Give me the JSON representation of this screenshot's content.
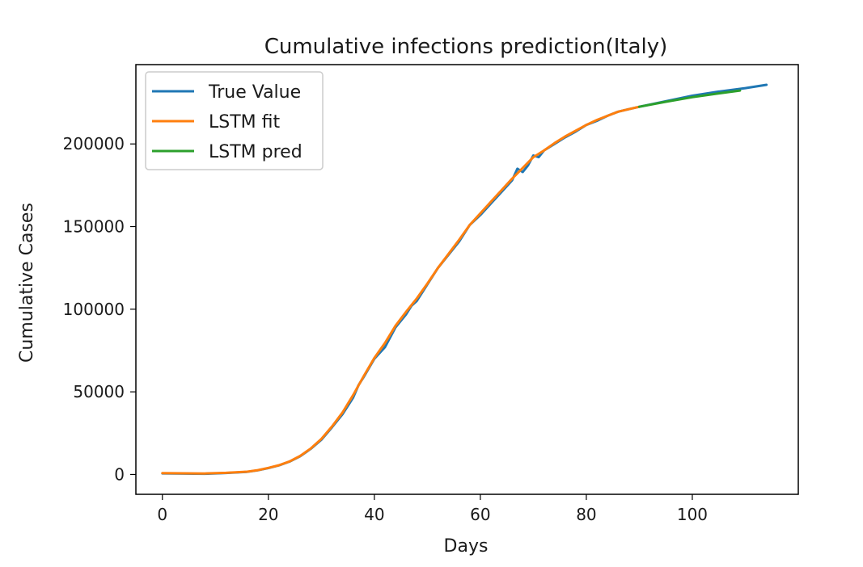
{
  "chart_data": {
    "type": "line",
    "title": "Cumulative infections prediction(Italy)",
    "xlabel": "Days",
    "ylabel": "Cumulative Cases",
    "xlim": [
      -5,
      120
    ],
    "ylim": [
      -12000,
      248000
    ],
    "x_ticks": [
      0,
      20,
      40,
      60,
      80,
      100
    ],
    "y_ticks": [
      0,
      50000,
      100000,
      150000,
      200000
    ],
    "grid": false,
    "legend_position": "upper left",
    "series": [
      {
        "name": "True Value",
        "color": "#1f77b4",
        "points": [
          [
            0,
            655
          ],
          [
            4,
            500
          ],
          [
            8,
            400
          ],
          [
            12,
            900
          ],
          [
            16,
            1600
          ],
          [
            18,
            2500
          ],
          [
            20,
            3900
          ],
          [
            22,
            5500
          ],
          [
            24,
            7800
          ],
          [
            26,
            11000
          ],
          [
            28,
            15500
          ],
          [
            30,
            21000
          ],
          [
            32,
            28500
          ],
          [
            34,
            36500
          ],
          [
            36,
            46500
          ],
          [
            37,
            54000
          ],
          [
            38,
            59000
          ],
          [
            40,
            70000
          ],
          [
            42,
            77000
          ],
          [
            44,
            89000
          ],
          [
            46,
            97000
          ],
          [
            47,
            102000
          ],
          [
            48,
            105000
          ],
          [
            50,
            115000
          ],
          [
            52,
            125000
          ],
          [
            54,
            133000
          ],
          [
            56,
            141000
          ],
          [
            58,
            151000
          ],
          [
            60,
            157000
          ],
          [
            62,
            164000
          ],
          [
            64,
            171000
          ],
          [
            66,
            178000
          ],
          [
            67,
            185000
          ],
          [
            68,
            183000
          ],
          [
            69,
            187000
          ],
          [
            70,
            193000
          ],
          [
            71,
            192000
          ],
          [
            72,
            196000
          ],
          [
            74,
            200000
          ],
          [
            76,
            204000
          ],
          [
            78,
            207500
          ],
          [
            80,
            211500
          ],
          [
            82,
            214000
          ],
          [
            84,
            217000
          ],
          [
            86,
            219500
          ],
          [
            88,
            221000
          ],
          [
            90,
            222500
          ],
          [
            95,
            225800
          ],
          [
            100,
            229200
          ],
          [
            105,
            231700
          ],
          [
            110,
            233800
          ],
          [
            114,
            235800
          ]
        ]
      },
      {
        "name": "LSTM fit",
        "color": "#ff7f0e",
        "points": [
          [
            0,
            800
          ],
          [
            4,
            700
          ],
          [
            8,
            600
          ],
          [
            12,
            1000
          ],
          [
            16,
            1700
          ],
          [
            18,
            2600
          ],
          [
            20,
            4000
          ],
          [
            22,
            5600
          ],
          [
            24,
            7900
          ],
          [
            26,
            11200
          ],
          [
            28,
            15700
          ],
          [
            30,
            21500
          ],
          [
            32,
            29000
          ],
          [
            34,
            37500
          ],
          [
            36,
            48000
          ],
          [
            38,
            59500
          ],
          [
            40,
            70500
          ],
          [
            42,
            79500
          ],
          [
            44,
            90000
          ],
          [
            46,
            98500
          ],
          [
            48,
            106500
          ],
          [
            50,
            115500
          ],
          [
            52,
            125000
          ],
          [
            54,
            133500
          ],
          [
            56,
            142000
          ],
          [
            58,
            151000
          ],
          [
            60,
            158000
          ],
          [
            62,
            165000
          ],
          [
            64,
            172000
          ],
          [
            66,
            179000
          ],
          [
            68,
            185500
          ],
          [
            70,
            192000
          ],
          [
            72,
            196000
          ],
          [
            74,
            200500
          ],
          [
            76,
            204500
          ],
          [
            78,
            208000
          ],
          [
            80,
            211500
          ],
          [
            82,
            214500
          ],
          [
            84,
            217000
          ],
          [
            86,
            219500
          ],
          [
            88,
            221000
          ],
          [
            90,
            222500
          ]
        ]
      },
      {
        "name": "LSTM pred",
        "color": "#2ca02c",
        "points": [
          [
            90,
            222500
          ],
          [
            95,
            225500
          ],
          [
            100,
            228300
          ],
          [
            105,
            230600
          ],
          [
            109,
            232300
          ]
        ]
      }
    ]
  }
}
